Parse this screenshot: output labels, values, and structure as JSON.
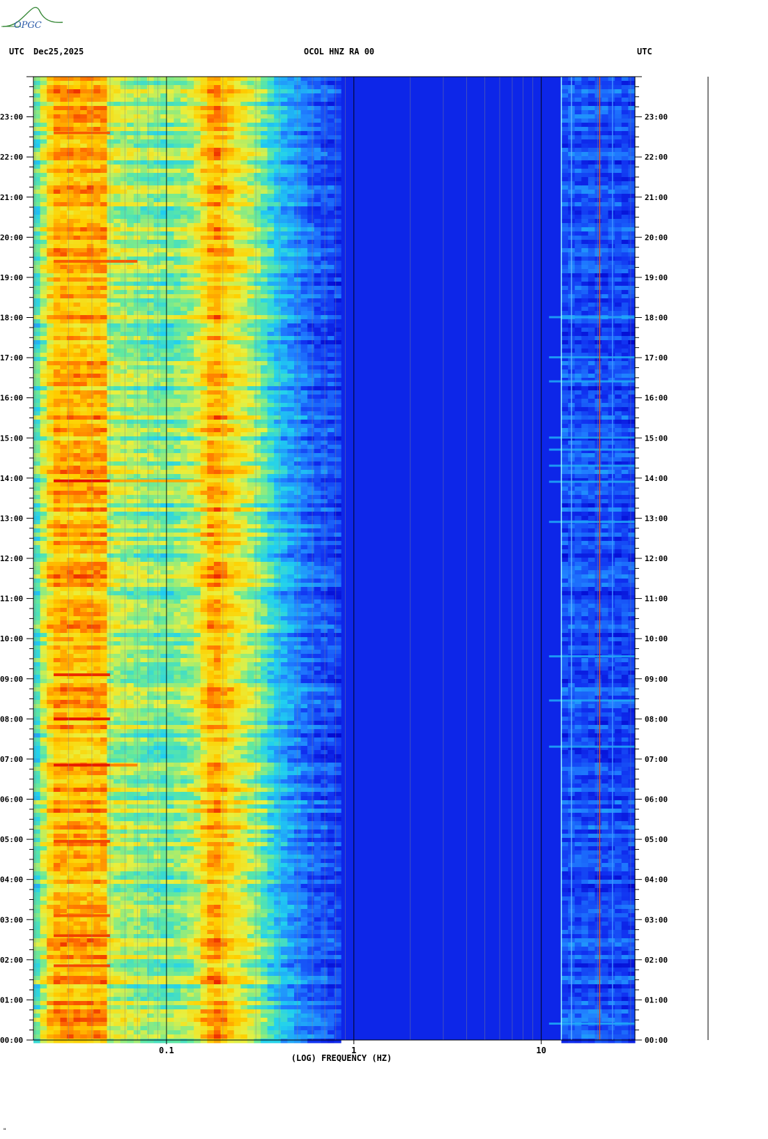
{
  "header": {
    "timezone_left": "UTC",
    "date": "Dec25,2025",
    "station": "OCOL HNZ RA 00",
    "timezone_right": "UTC"
  },
  "logo": {
    "text": "OPGC"
  },
  "footer_mark": "\"",
  "chart_data": {
    "type": "heatmap",
    "title": "OCOL HNZ RA 00",
    "xlabel": "(LOG) FREQUENCY (HZ)",
    "ylabel": "UTC",
    "x_scale": "log",
    "x_range": [
      0.0195,
      31.6
    ],
    "x_tick_labels": [
      {
        "value": 0.1,
        "label": "0.1"
      },
      {
        "value": 1,
        "label": "1"
      },
      {
        "value": 10,
        "label": "10"
      }
    ],
    "y_range_hours": [
      0,
      24
    ],
    "y_tick_labels": [
      "00:00",
      "01:00",
      "02:00",
      "03:00",
      "04:00",
      "05:00",
      "06:00",
      "07:00",
      "08:00",
      "09:00",
      "10:00",
      "11:00",
      "12:00",
      "13:00",
      "14:00",
      "15:00",
      "16:00",
      "17:00",
      "18:00",
      "19:00",
      "20:00",
      "21:00",
      "22:00",
      "23:00"
    ],
    "colormap": [
      "#0000c8",
      "#1030f0",
      "#2080ff",
      "#20d0f0",
      "#60e8a0",
      "#e8f040",
      "#ffd000",
      "#ff7000",
      "#e00000"
    ],
    "grid": true,
    "intensity_profile": [
      {
        "freq": 0.02,
        "level": 0.45
      },
      {
        "freq": 0.025,
        "level": 0.78
      },
      {
        "freq": 0.047,
        "level": 0.78
      },
      {
        "freq": 0.05,
        "level": 0.6
      },
      {
        "freq": 0.07,
        "level": 0.55
      },
      {
        "freq": 0.1,
        "level": 0.5
      },
      {
        "freq": 0.14,
        "level": 0.58
      },
      {
        "freq": 0.18,
        "level": 0.82
      },
      {
        "freq": 0.22,
        "level": 0.7
      },
      {
        "freq": 0.3,
        "level": 0.55
      },
      {
        "freq": 0.4,
        "level": 0.35
      },
      {
        "freq": 0.6,
        "level": 0.2
      },
      {
        "freq": 1.0,
        "level": 0.12
      },
      {
        "freq": 5.0,
        "level": 0.09
      },
      {
        "freq": 11.0,
        "level": 0.1
      },
      {
        "freq": 14.0,
        "level": 0.18
      },
      {
        "freq": 31.6,
        "level": 0.15
      }
    ],
    "persistent_lines_hz": [
      {
        "freq": 12.8,
        "color": "#a0ffff"
      },
      {
        "freq": 20.5,
        "color": "#e05020"
      },
      {
        "freq": 14.5,
        "color": "#60b0ff"
      },
      {
        "freq": 24.0,
        "color": "#4090ff"
      }
    ],
    "event_bands": [
      {
        "hour": 13.93,
        "fmin": 0.025,
        "fmax": 0.05,
        "level": 0.98
      },
      {
        "hour": 13.93,
        "fmin": 0.05,
        "fmax": 0.16,
        "level": 0.8
      },
      {
        "hour": 6.85,
        "fmin": 0.025,
        "fmax": 0.05,
        "level": 0.97
      },
      {
        "hour": 6.85,
        "fmin": 0.05,
        "fmax": 0.07,
        "level": 0.85
      },
      {
        "hour": 8.0,
        "fmin": 0.025,
        "fmax": 0.05,
        "level": 0.98
      },
      {
        "hour": 9.1,
        "fmin": 0.025,
        "fmax": 0.05,
        "level": 0.95
      },
      {
        "hour": 19.4,
        "fmin": 0.025,
        "fmax": 0.07,
        "level": 0.9
      },
      {
        "hour": 1.85,
        "fmin": 0.025,
        "fmax": 0.05,
        "level": 0.92
      },
      {
        "hour": 2.6,
        "fmin": 0.025,
        "fmax": 0.05,
        "level": 0.93
      },
      {
        "hour": 3.1,
        "fmin": 0.025,
        "fmax": 0.05,
        "level": 0.9
      },
      {
        "hour": 4.95,
        "fmin": 0.025,
        "fmax": 0.05,
        "level": 0.92
      },
      {
        "hour": 22.6,
        "fmin": 0.025,
        "fmax": 0.05,
        "level": 0.9
      }
    ],
    "hf_event_hours": [
      0.4,
      7.3,
      8.45,
      9.55,
      12.9,
      13.9,
      14.3,
      14.7,
      15.0,
      16.4,
      17.0,
      18.0
    ]
  }
}
